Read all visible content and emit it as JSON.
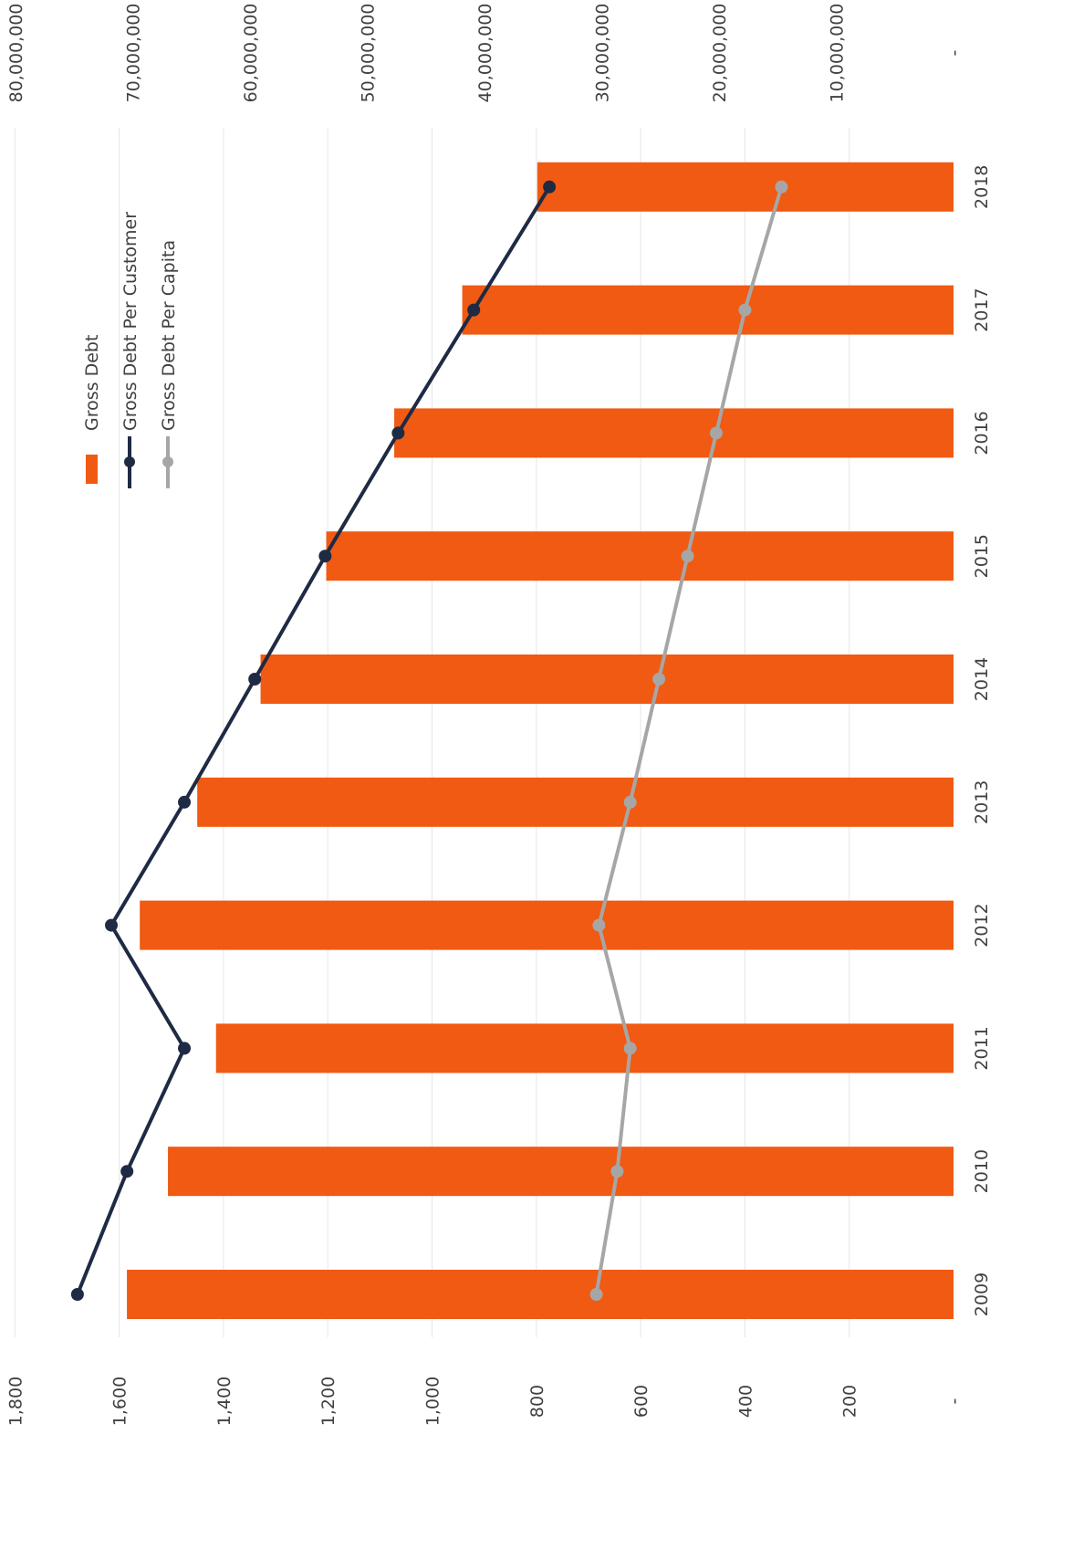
{
  "chart_data": {
    "type": "bar",
    "orientation": "rotated-90-clockwise",
    "categories": [
      "2009",
      "2010",
      "2011",
      "2012",
      "2013",
      "2014",
      "2015",
      "2016",
      "2017",
      "2018"
    ],
    "series": [
      {
        "name": "Gross Debt",
        "type": "bar",
        "axis": "secondary",
        "color": "#F05A12",
        "values": [
          70500000,
          67000000,
          62900000,
          69400000,
          64500000,
          59100000,
          53500000,
          47700000,
          41900000,
          35500000
        ]
      },
      {
        "name": "Gross Debt Per Customer",
        "type": "line",
        "axis": "primary",
        "color": "#1F2A44",
        "values": [
          1680,
          1585,
          1475,
          1615,
          1475,
          1340,
          1205,
          1065,
          920,
          775
        ]
      },
      {
        "name": "Gross Debt Per Capita",
        "type": "line",
        "axis": "primary",
        "color": "#A6A6A6",
        "values": [
          685,
          645,
          620,
          680,
          620,
          565,
          510,
          455,
          400,
          330
        ]
      }
    ],
    "primary_axis": {
      "min": 0,
      "max": 1800,
      "ticks": [
        "-",
        "200",
        "400",
        "600",
        "800",
        "1,000",
        "1,200",
        "1,400",
        "1,600",
        "1,800"
      ]
    },
    "secondary_axis": {
      "min": 0,
      "max": 80000000,
      "ticks": [
        "-",
        "10,000,000",
        "20,000,000",
        "30,000,000",
        "40,000,000",
        "50,000,000",
        "60,000,000",
        "70,000,000",
        "80,000,000"
      ]
    },
    "grid": true,
    "legend": "top-right"
  }
}
